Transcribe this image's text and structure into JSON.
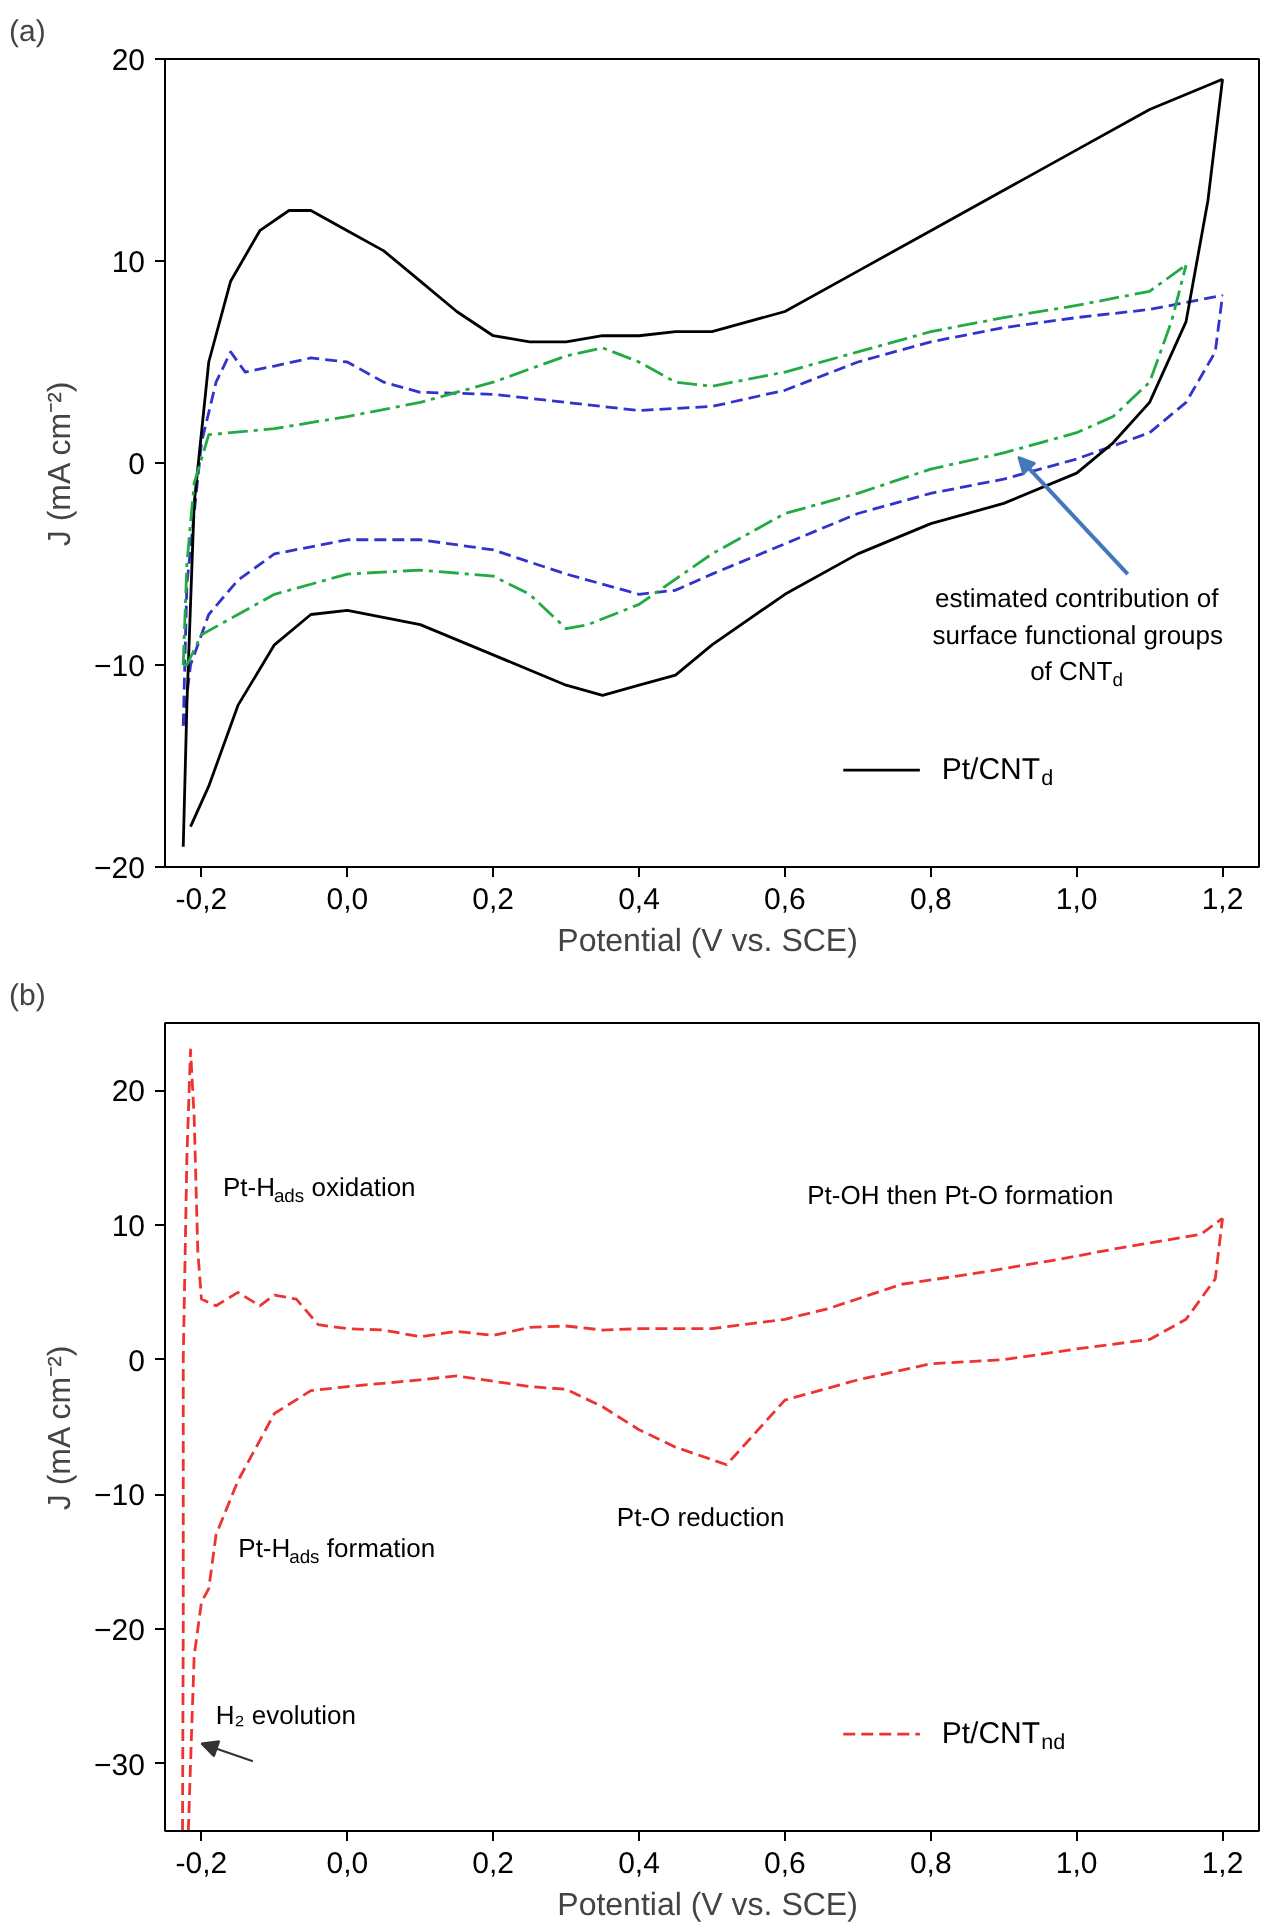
{
  "chart_data": [
    {
      "type": "line",
      "title": "(a)",
      "xlabel": "Potential  (V vs. SCE)",
      "ylabel": "J (mA cm⁻²)",
      "xlim": [
        -0.25,
        1.25
      ],
      "ylim": [
        -20,
        20
      ],
      "xticks": [
        {
          "value": -0.2,
          "label": "-0,2"
        },
        {
          "value": 0,
          "label": "0,0"
        },
        {
          "value": 0.2,
          "label": "0,2"
        },
        {
          "value": 0.4,
          "label": "0,4"
        },
        {
          "value": 0.6,
          "label": "0,6"
        },
        {
          "value": 0.8,
          "label": "0,8"
        },
        {
          "value": 1.0,
          "label": "1,0"
        },
        {
          "value": 1.2,
          "label": "1,2"
        }
      ],
      "yticks": [
        -20,
        -10,
        0,
        10,
        20
      ],
      "grid": false,
      "legend": "bottom right",
      "series": [
        {
          "color": "#3333cc",
          "line_style": "dashed",
          "x": [
            -0.225,
            -0.22,
            -0.2,
            -0.18,
            -0.16,
            -0.14,
            -0.1,
            -0.05,
            0.0,
            0.05,
            0.1,
            0.2,
            0.3,
            0.4,
            0.5,
            0.6,
            0.7,
            0.8,
            0.9,
            1.0,
            1.1,
            1.2
          ],
          "values": [
            -13,
            -6,
            1,
            4,
            5.5,
            4.5,
            4.8,
            5.2,
            5,
            4,
            3.5,
            3.4,
            3,
            2.6,
            2.8,
            3.6,
            5,
            6,
            6.7,
            7.2,
            7.6,
            8.3
          ]
        },
        {
          "color": "#3333cc",
          "line_style": "dashed",
          "x": [
            -0.225,
            -0.215,
            -0.19,
            -0.15,
            -0.1,
            0.0,
            0.1,
            0.2,
            0.3,
            0.4,
            0.45,
            0.5,
            0.6,
            0.7,
            0.8,
            0.9,
            1.0,
            1.1,
            1.15,
            1.19,
            1.2
          ],
          "values": [
            -13,
            -10,
            -7.5,
            -5.8,
            -4.5,
            -3.8,
            -3.8,
            -4.3,
            -5.5,
            -6.5,
            -6.3,
            -5.5,
            -4,
            -2.5,
            -1.5,
            -0.8,
            0.2,
            1.5,
            3,
            5.5,
            8.3
          ]
        },
        {
          "name": "Pt/CNT$_{d}$",
          "color": "#000000",
          "line_style": "solid",
          "x": [
            -0.225,
            -0.22,
            -0.21,
            -0.19,
            -0.16,
            -0.12,
            -0.08,
            -0.05,
            0.0,
            0.05,
            0.1,
            0.15,
            0.2,
            0.25,
            0.3,
            0.35,
            0.4,
            0.45,
            0.5,
            0.6,
            0.7,
            0.8,
            0.9,
            1.0,
            1.1,
            1.2
          ],
          "values": [
            -19,
            -12,
            -2,
            5,
            9,
            11.5,
            12.5,
            12.5,
            11.5,
            10.5,
            9,
            7.5,
            6.3,
            6,
            6,
            6.3,
            6.3,
            6.5,
            6.5,
            7.5,
            9.5,
            11.5,
            13.5,
            15.5,
            17.5,
            19
          ]
        },
        {
          "color": "#000000",
          "line_style": "solid",
          "x": [
            -0.215,
            -0.19,
            -0.15,
            -0.1,
            -0.05,
            0.0,
            0.1,
            0.2,
            0.3,
            0.35,
            0.4,
            0.45,
            0.5,
            0.6,
            0.7,
            0.8,
            0.9,
            1.0,
            1.05,
            1.1,
            1.15,
            1.18,
            1.2
          ],
          "values": [
            -18,
            -16,
            -12,
            -9,
            -7.5,
            -7.3,
            -8,
            -9.5,
            -11,
            -11.5,
            -11,
            -10.5,
            -9,
            -6.5,
            -4.5,
            -3,
            -2,
            -0.5,
            1,
            3,
            7,
            13,
            19
          ]
        },
        {
          "color": "#22aa44",
          "line_style": "dashdot",
          "x": [
            -0.225,
            -0.22,
            -0.21,
            -0.19,
            -0.1,
            0.0,
            0.1,
            0.2,
            0.3,
            0.35,
            0.4,
            0.45,
            0.5,
            0.6,
            0.7,
            0.8,
            0.9,
            1.0,
            1.1,
            1.15
          ],
          "values": [
            -10,
            -5,
            -1,
            1.4,
            1.7,
            2.3,
            3,
            4,
            5.3,
            5.7,
            5,
            4,
            3.8,
            4.5,
            5.5,
            6.5,
            7.2,
            7.8,
            8.5,
            9.8
          ]
        },
        {
          "color": "#22aa44",
          "line_style": "dashdot",
          "x": [
            -0.225,
            -0.22,
            -0.2,
            -0.15,
            -0.1,
            0.0,
            0.1,
            0.2,
            0.25,
            0.3,
            0.33,
            0.4,
            0.5,
            0.6,
            0.7,
            0.8,
            0.9,
            1.0,
            1.05,
            1.1,
            1.13,
            1.15
          ],
          "values": [
            -10,
            -10,
            -8.5,
            -7.5,
            -6.5,
            -5.5,
            -5.3,
            -5.6,
            -6.5,
            -8.2,
            -8,
            -7,
            -4.5,
            -2.5,
            -1.5,
            -0.3,
            0.5,
            1.5,
            2.3,
            4,
            7,
            9.8
          ]
        }
      ],
      "annotations": [
        {
          "text": "estimated contribution of\nsurface functional groups\nof CNT$_{d}$",
          "x": 0.92,
          "y": 0.3
        }
      ]
    },
    {
      "type": "line",
      "title": "(b)",
      "xlabel": "Potential  (V vs. SCE)",
      "ylabel": "J (mA cm⁻²)",
      "xlim": [
        -0.25,
        1.25
      ],
      "ylim": [
        -35,
        25
      ],
      "xticks": [
        {
          "value": -0.2,
          "label": "-0,2"
        },
        {
          "value": 0,
          "label": "0,0"
        },
        {
          "value": 0.2,
          "label": "0,2"
        },
        {
          "value": 0.4,
          "label": "0,4"
        },
        {
          "value": 0.6,
          "label": "0,6"
        },
        {
          "value": 0.8,
          "label": "0,8"
        },
        {
          "value": 1.0,
          "label": "1,0"
        },
        {
          "value": 1.2,
          "label": "1,2"
        }
      ],
      "yticks": [
        -30,
        -20,
        -10,
        0,
        10,
        20
      ],
      "grid": false,
      "legend": "bottom right",
      "series": [
        {
          "name": "Pt/CNT$_{nd}$",
          "color": "#ee3333",
          "line_style": "dashed",
          "x": [
            -0.226,
            -0.225,
            -0.225,
            -0.22,
            -0.215,
            -0.21,
            -0.205,
            -0.2,
            -0.18,
            -0.15,
            -0.12,
            -0.1,
            -0.07,
            -0.04,
            0.0,
            0.05,
            0.1,
            0.15,
            0.2,
            0.25,
            0.3,
            0.35,
            0.4,
            0.5,
            0.6,
            0.66,
            0.76,
            0.86,
            0.97,
            1.07,
            1.17,
            1.2
          ],
          "values": [
            -35,
            -20,
            0,
            15,
            23,
            18,
            8,
            4.5,
            4,
            5,
            4,
            4.8,
            4.5,
            2.6,
            2.3,
            2.2,
            1.7,
            2.1,
            1.8,
            2.4,
            2.5,
            2.2,
            2.3,
            2.3,
            3,
            3.8,
            5.6,
            6.4,
            7.4,
            8.4,
            9.3,
            10.5
          ]
        },
        {
          "color": "#ee3333",
          "line_style": "dashed",
          "x": [
            -0.218,
            -0.215,
            -0.21,
            -0.2,
            -0.19,
            -0.18,
            -0.15,
            -0.13,
            -0.1,
            -0.05,
            0.0,
            0.1,
            0.15,
            0.2,
            0.25,
            0.3,
            0.35,
            0.4,
            0.45,
            0.52,
            0.55,
            0.6,
            0.7,
            0.8,
            0.9,
            1.0,
            1.1,
            1.15,
            1.19,
            1.2
          ],
          "values": [
            -35,
            -30,
            -22,
            -18,
            -17,
            -13,
            -9,
            -7,
            -4,
            -2.3,
            -2,
            -1.5,
            -1.2,
            -1.6,
            -2,
            -2.2,
            -3.5,
            -5.2,
            -6.5,
            -7.8,
            -6,
            -3,
            -1.5,
            -0.3,
            0,
            0.8,
            1.5,
            3,
            6,
            10.5
          ]
        }
      ],
      "annotations": [
        "Pt-H$_{ads}$ oxidation",
        "Pt-OH then Pt-O formation",
        "Pt-O reduction",
        "Pt-H$_{ads}$ formation",
        {
          "text": "H₂ evolution",
          "x": -0.2,
          "y": -28.5
        }
      ]
    }
  ]
}
